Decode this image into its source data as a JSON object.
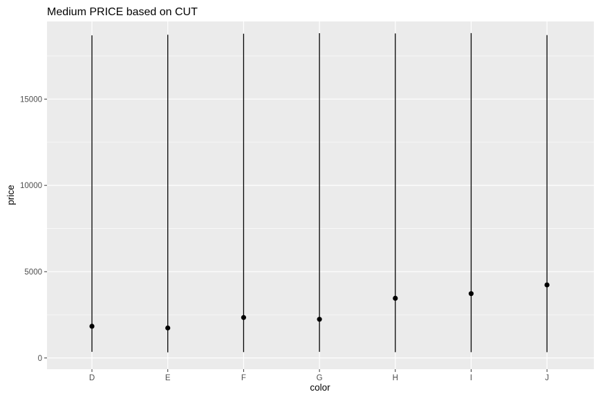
{
  "chart_data": {
    "type": "scatter",
    "title": "Medium PRICE based on CUT",
    "xlabel": "color",
    "ylabel": "price",
    "categories": [
      "D",
      "E",
      "F",
      "G",
      "H",
      "I",
      "J"
    ],
    "series": [
      {
        "values": [
          1838,
          1739,
          2344,
          2242,
          3460,
          3730,
          4234
        ],
        "range_low": [
          357,
          326,
          342,
          354,
          337,
          334,
          335
        ],
        "range_high": [
          18693,
          18731,
          18791,
          18818,
          18803,
          18823,
          18710
        ]
      }
    ],
    "ylim": [
      -650,
      19500
    ],
    "yticks": [
      0,
      5000,
      10000,
      15000
    ],
    "grid": true,
    "colors": {
      "panel_background": "#ebebeb",
      "grid_line": "#ffffff",
      "marker": "#000000",
      "range_line": "#000000"
    }
  }
}
